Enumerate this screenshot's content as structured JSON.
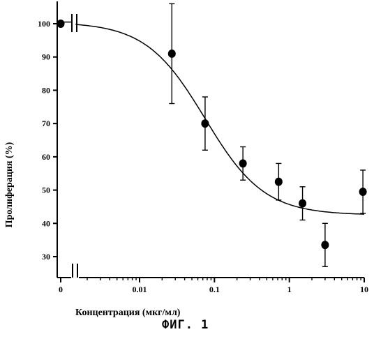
{
  "chart_data": {
    "type": "scatter",
    "xlabel": "Концентрация (мкг/мл)",
    "ylabel": "Пролиферация (%)",
    "xscale": "log",
    "x_axis_break": true,
    "y_axis_break": true,
    "ylim": [
      25,
      105
    ],
    "xticks": [
      {
        "value": 0,
        "label": "0"
      },
      {
        "value": 0.01,
        "label": "0.01"
      },
      {
        "value": 0.1,
        "label": "0.1"
      },
      {
        "value": 1,
        "label": "1"
      },
      {
        "value": 10,
        "label": "10"
      }
    ],
    "yticks": [
      30,
      40,
      50,
      60,
      70,
      80,
      90,
      100
    ],
    "grid": false,
    "points": [
      {
        "x": 0,
        "y": 100,
        "err": 0
      },
      {
        "x": 0.027,
        "y": 91,
        "err": 15
      },
      {
        "x": 0.075,
        "y": 70,
        "err": 8
      },
      {
        "x": 0.24,
        "y": 58,
        "err": 5
      },
      {
        "x": 0.72,
        "y": 52.5,
        "err": 5.5
      },
      {
        "x": 1.5,
        "y": 46,
        "err": 5
      },
      {
        "x": 3.0,
        "y": 33.5,
        "err": 6.5
      },
      {
        "x": 9.6,
        "y": 49.5,
        "err": 6.5
      }
    ],
    "fit_curve": {
      "top": 100.5,
      "bottom": 42.5,
      "ec50": 0.075,
      "hill": 1.1,
      "x_range": [
        0.0014,
        10
      ]
    }
  },
  "caption": "ФИГ. 1"
}
